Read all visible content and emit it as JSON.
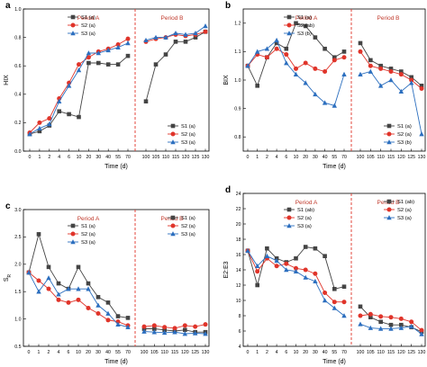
{
  "colors": {
    "S1": "#444444",
    "S2": "#e0342a",
    "S3": "#2c6fbf",
    "period": "#c0392b",
    "divider": "#e0342a"
  },
  "chart_data": [
    {
      "type": "line",
      "panel": "a",
      "ylabel": "HIX",
      "xlabel": "Time (d)",
      "ylim": [
        0,
        1.0
      ],
      "yticks": [
        "0.0",
        "0.2",
        "0.4",
        "0.6",
        "0.8",
        "1.0"
      ],
      "yticks_values": [
        0,
        0.2,
        0.4,
        0.6,
        0.8,
        1.0
      ],
      "period_a_label": "Period A",
      "period_b_label": "Period B",
      "legend_position": "bottom-right",
      "period_a": {
        "x": [
          "0",
          "1",
          "2",
          "4",
          "6",
          "10",
          "20",
          "30",
          "40",
          "55",
          "70"
        ],
        "series": [
          {
            "name": "S1 (a)",
            "marker": "square",
            "values": [
              0.12,
              0.14,
              0.18,
              0.28,
              0.26,
              0.24,
              0.62,
              0.62,
              0.61,
              0.61,
              0.67
            ]
          },
          {
            "name": "S2 (a)",
            "marker": "circle",
            "values": [
              0.13,
              0.2,
              0.23,
              0.37,
              0.48,
              0.61,
              0.66,
              0.7,
              0.72,
              0.75,
              0.79
            ]
          },
          {
            "name": "S3 (a)",
            "marker": "triangle",
            "values": [
              0.12,
              0.16,
              0.19,
              0.35,
              0.46,
              0.57,
              0.69,
              0.69,
              0.71,
              0.73,
              0.76
            ]
          }
        ]
      },
      "period_b": {
        "x": [
          "100",
          "105",
          "110",
          "115",
          "120",
          "125",
          "130"
        ],
        "series": [
          {
            "name": "S1 (a)",
            "marker": "square",
            "values": [
              0.35,
              0.61,
              0.68,
              0.77,
              0.77,
              0.8,
              0.84
            ]
          },
          {
            "name": "S2 (a)",
            "marker": "circle",
            "values": [
              0.77,
              0.79,
              0.8,
              0.82,
              0.81,
              0.82,
              0.84
            ]
          },
          {
            "name": "S3 (a)",
            "marker": "triangle",
            "values": [
              0.78,
              0.8,
              0.8,
              0.83,
              0.82,
              0.83,
              0.88
            ]
          }
        ]
      }
    },
    {
      "type": "line",
      "panel": "b",
      "ylabel": "BIX",
      "xlabel": "Time (d)",
      "ylim": [
        0.75,
        1.25
      ],
      "yticks": [
        "0.8",
        "0.9",
        "1.0",
        "1.1",
        "1.2"
      ],
      "yticks_values": [
        0.8,
        0.9,
        1.0,
        1.1,
        1.2
      ],
      "period_a_label": "Period A",
      "period_b_label": "Period B",
      "legend_position": "bottom-right",
      "period_a": {
        "x": [
          "0",
          "1",
          "2",
          "4",
          "6",
          "10",
          "20",
          "30",
          "40",
          "55",
          "70"
        ],
        "series": [
          {
            "name": "S1 (a)",
            "marker": "square",
            "values": [
              1.05,
              0.98,
              1.08,
              1.13,
              1.11,
              1.2,
              1.19,
              1.15,
              1.11,
              1.08,
              1.1
            ]
          },
          {
            "name": "S2 (ab)",
            "marker": "circle",
            "values": [
              1.05,
              1.09,
              1.08,
              1.11,
              1.09,
              1.04,
              1.06,
              1.04,
              1.03,
              1.07,
              1.08
            ]
          },
          {
            "name": "S3 (b)",
            "marker": "triangle",
            "values": [
              1.05,
              1.1,
              1.11,
              1.14,
              1.06,
              1.02,
              0.99,
              0.95,
              0.92,
              0.91,
              1.02
            ]
          }
        ]
      },
      "period_b": {
        "x": [
          "100",
          "105",
          "110",
          "115",
          "120",
          "125",
          "130"
        ],
        "series": [
          {
            "name": "S1 (a)",
            "marker": "square",
            "values": [
              1.13,
              1.07,
              1.05,
              1.04,
              1.03,
              1.01,
              0.98
            ]
          },
          {
            "name": "S2 (a)",
            "marker": "circle",
            "values": [
              1.1,
              1.05,
              1.04,
              1.03,
              1.02,
              1.0,
              0.97
            ]
          },
          {
            "name": "S3 (b)",
            "marker": "triangle",
            "values": [
              1.02,
              1.03,
              0.98,
              1.0,
              0.96,
              0.99,
              0.81
            ]
          }
        ]
      }
    },
    {
      "type": "line",
      "panel": "c",
      "ylabel": "S",
      "ylabel_sub": "R",
      "xlabel": "Time (d)",
      "ylim": [
        0.5,
        3.0
      ],
      "yticks": [
        "0.5",
        "1.0",
        "1.5",
        "2.0",
        "2.5",
        "3.0"
      ],
      "yticks_values": [
        0.5,
        1.0,
        1.5,
        2.0,
        2.5,
        3.0
      ],
      "period_a_label": "Period A",
      "period_b_label": "Period B",
      "legend_position": "top-right",
      "period_a": {
        "x": [
          "0",
          "1",
          "2",
          "4",
          "6",
          "10",
          "20",
          "30",
          "40",
          "55",
          "70"
        ],
        "series": [
          {
            "name": "S1 (a)",
            "marker": "square",
            "values": [
              1.85,
              2.55,
              1.95,
              1.65,
              1.55,
              1.95,
              1.65,
              1.4,
              1.3,
              1.05,
              1.02
            ]
          },
          {
            "name": "S2 (a)",
            "marker": "circle",
            "values": [
              1.85,
              1.7,
              1.55,
              1.35,
              1.3,
              1.35,
              1.2,
              1.1,
              0.98,
              0.95,
              0.88
            ]
          },
          {
            "name": "S3 (a)",
            "marker": "triangle",
            "values": [
              1.85,
              1.5,
              1.75,
              1.45,
              1.55,
              1.55,
              1.55,
              1.25,
              1.1,
              0.9,
              0.85
            ]
          }
        ]
      },
      "period_b": {
        "x": [
          "100",
          "105",
          "110",
          "115",
          "120",
          "125",
          "130"
        ],
        "series": [
          {
            "name": "S1 (a)",
            "marker": "square",
            "values": [
              0.82,
              0.82,
              0.8,
              0.78,
              0.8,
              0.76,
              0.76
            ]
          },
          {
            "name": "S2 (a)",
            "marker": "circle",
            "values": [
              0.86,
              0.88,
              0.85,
              0.83,
              0.88,
              0.86,
              0.9
            ]
          },
          {
            "name": "S3 (a)",
            "marker": "triangle",
            "values": [
              0.77,
              0.76,
              0.75,
              0.76,
              0.73,
              0.74,
              0.73
            ]
          }
        ]
      }
    },
    {
      "type": "line",
      "panel": "d",
      "ylabel": "E2:E3",
      "xlabel": "Time (d)",
      "ylim": [
        4,
        24
      ],
      "yticks": [
        "4",
        "6",
        "8",
        "10",
        "12",
        "14",
        "16",
        "18",
        "20",
        "22",
        "24"
      ],
      "yticks_values": [
        4,
        6,
        8,
        10,
        12,
        14,
        16,
        18,
        20,
        22,
        24
      ],
      "period_a_label": "Period A",
      "period_b_label": "Period B",
      "legend_position": "top-right",
      "period_a": {
        "x": [
          "0",
          "1",
          "2",
          "4",
          "6",
          "10",
          "20",
          "30",
          "40",
          "55",
          "70"
        ],
        "series": [
          {
            "name": "S1 (ab)",
            "marker": "square",
            "values": [
              16.5,
              12.0,
              16.8,
              15.5,
              15.0,
              15.5,
              17.0,
              16.8,
              15.8,
              11.5,
              11.8
            ]
          },
          {
            "name": "S2 (a)",
            "marker": "circle",
            "values": [
              16.5,
              13.8,
              15.5,
              14.5,
              14.8,
              14.2,
              14.0,
              13.5,
              11.0,
              9.8,
              9.8
            ]
          },
          {
            "name": "S3 (a)",
            "marker": "triangle",
            "values": [
              16.5,
              14.5,
              15.8,
              15.2,
              14.0,
              13.8,
              13.0,
              12.5,
              10.0,
              9.0,
              8.0
            ]
          }
        ]
      },
      "period_b": {
        "x": [
          "100",
          "105",
          "110",
          "115",
          "120",
          "125",
          "130"
        ],
        "series": [
          {
            "name": "S1 (ab)",
            "marker": "square",
            "values": [
              9.2,
              7.8,
              7.2,
              6.8,
              6.8,
              6.5,
              5.9
            ]
          },
          {
            "name": "S2 (a)",
            "marker": "circle",
            "values": [
              8.0,
              8.2,
              7.9,
              7.8,
              7.6,
              7.2,
              6.1
            ]
          },
          {
            "name": "S3 (a)",
            "marker": "triangle",
            "values": [
              6.9,
              6.4,
              6.3,
              6.3,
              6.4,
              6.6,
              5.6
            ]
          }
        ]
      }
    }
  ]
}
